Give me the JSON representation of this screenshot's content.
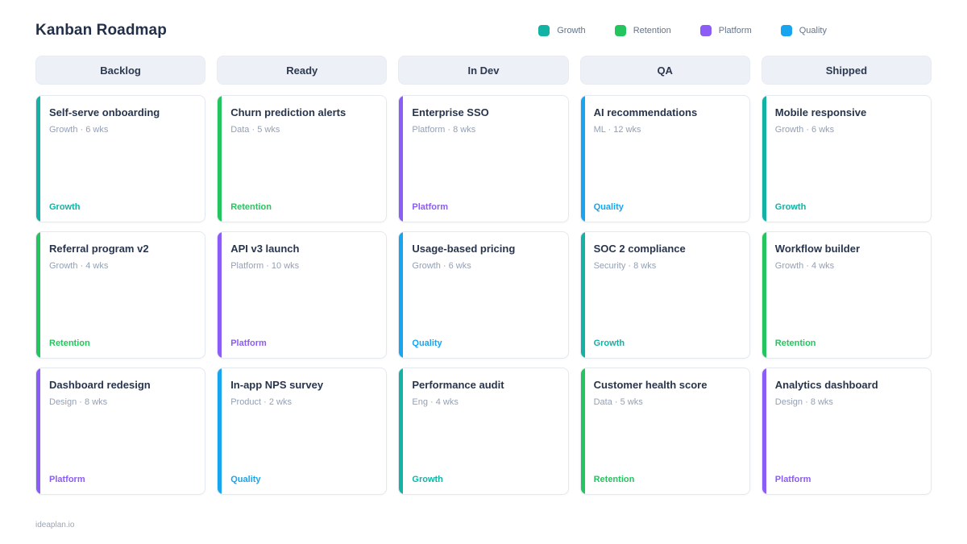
{
  "page": {
    "title": "Kanban Roadmap",
    "footer": "ideaplan.io"
  },
  "legend": [
    {
      "label": "Growth",
      "color": "#12b3a4"
    },
    {
      "label": "Retention",
      "color": "#24c55e"
    },
    {
      "label": "Platform",
      "color": "#8b5cf6"
    },
    {
      "label": "Quality",
      "color": "#18a5f0"
    }
  ],
  "tag_colors": {
    "Growth": "#12b3a4",
    "Retention": "#24c55e",
    "Platform": "#8b5cf6",
    "Quality": "#18a5f0"
  },
  "columns": [
    {
      "name": "Backlog",
      "cards": [
        {
          "title": "Self-serve onboarding",
          "meta": "Growth · 6 wks",
          "tag": "Growth"
        },
        {
          "title": "Referral program v2",
          "meta": "Growth · 4 wks",
          "tag": "Retention"
        },
        {
          "title": "Dashboard redesign",
          "meta": "Design · 8 wks",
          "tag": "Platform"
        }
      ]
    },
    {
      "name": "Ready",
      "cards": [
        {
          "title": "Churn prediction alerts",
          "meta": "Data · 5 wks",
          "tag": "Retention"
        },
        {
          "title": "API v3 launch",
          "meta": "Platform · 10 wks",
          "tag": "Platform"
        },
        {
          "title": "In-app NPS survey",
          "meta": "Product · 2 wks",
          "tag": "Quality"
        }
      ]
    },
    {
      "name": "In Dev",
      "cards": [
        {
          "title": "Enterprise SSO",
          "meta": "Platform · 8 wks",
          "tag": "Platform"
        },
        {
          "title": "Usage-based pricing",
          "meta": "Growth · 6 wks",
          "tag": "Quality"
        },
        {
          "title": "Performance audit",
          "meta": "Eng · 4 wks",
          "tag": "Growth"
        }
      ]
    },
    {
      "name": "QA",
      "cards": [
        {
          "title": "AI recommendations",
          "meta": "ML · 12 wks",
          "tag": "Quality"
        },
        {
          "title": "SOC 2 compliance",
          "meta": "Security · 8 wks",
          "tag": "Growth"
        },
        {
          "title": "Customer health score",
          "meta": "Data · 5 wks",
          "tag": "Retention"
        }
      ]
    },
    {
      "name": "Shipped",
      "cards": [
        {
          "title": "Mobile responsive",
          "meta": "Growth · 6 wks",
          "tag": "Growth"
        },
        {
          "title": "Workflow builder",
          "meta": "Growth · 4 wks",
          "tag": "Retention"
        },
        {
          "title": "Analytics dashboard",
          "meta": "Design · 8 wks",
          "tag": "Platform"
        }
      ]
    }
  ]
}
